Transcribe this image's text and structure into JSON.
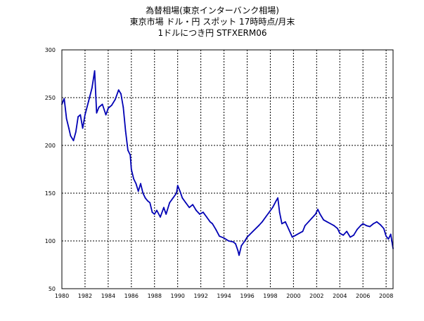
{
  "chart_data": {
    "type": "line",
    "title": "為替相場(東京インターバンク相場)",
    "subtitle": "東京市場  ドル・円  スポット  17時時点/月末",
    "series_label": "1ドルにつき円 STFXERM06",
    "xlabel": "",
    "ylabel": "",
    "xlim": [
      1980,
      2008.6
    ],
    "ylim": [
      50,
      300
    ],
    "grid": true,
    "x_ticks": [
      "1980",
      "1982",
      "1984",
      "1986",
      "1988",
      "1990",
      "1992",
      "1994",
      "1996",
      "1998",
      "2000",
      "2002",
      "2004",
      "2006",
      "2008"
    ],
    "y_ticks": [
      "300",
      "250",
      "200",
      "150",
      "100",
      "50"
    ],
    "line_color": "#0000b4",
    "series": [
      {
        "x": [
          1980.0,
          1980.2,
          1980.4,
          1980.6,
          1980.75,
          1981.0,
          1981.2,
          1981.4,
          1981.6,
          1981.8,
          1982.0,
          1982.3,
          1982.6,
          1982.83,
          1983.0,
          1983.2,
          1983.5,
          1983.8,
          1984.0,
          1984.3,
          1984.6,
          1984.9,
          1985.1,
          1985.3,
          1985.5,
          1985.7,
          1985.9,
          1986.0,
          1986.2,
          1986.4,
          1986.6,
          1986.8,
          1987.0,
          1987.2,
          1987.4,
          1987.6,
          1987.8,
          1988.0,
          1988.2,
          1988.5,
          1988.8,
          1989.0,
          1989.3,
          1989.6,
          1989.9,
          1990.0,
          1990.2,
          1990.4,
          1990.7,
          1991.0,
          1991.3,
          1991.6,
          1991.9,
          1992.2,
          1992.5,
          1992.8,
          1993.0,
          1993.3,
          1993.6,
          1994.0,
          1994.4,
          1994.8,
          1995.0,
          1995.2,
          1995.3,
          1995.5,
          1995.8,
          1996.0,
          1996.5,
          1997.0,
          1997.3,
          1997.6,
          1997.9,
          1998.2,
          1998.5,
          1998.65,
          1998.8,
          1999.0,
          1999.3,
          1999.6,
          1999.9,
          2000.2,
          2000.5,
          2000.8,
          2001.0,
          2001.3,
          2001.6,
          2001.9,
          2002.1,
          2002.3,
          2002.6,
          2002.9,
          2003.2,
          2003.5,
          2003.8,
          2004.0,
          2004.3,
          2004.6,
          2004.9,
          2005.2,
          2005.5,
          2005.8,
          2006.0,
          2006.3,
          2006.6,
          2006.9,
          2007.2,
          2007.5,
          2007.8,
          2008.0,
          2008.2,
          2008.4,
          2008.6
        ],
        "values": [
          243,
          249,
          228,
          218,
          210,
          205,
          214,
          230,
          232,
          218,
          232,
          246,
          260,
          278,
          234,
          240,
          243,
          232,
          239,
          242,
          248,
          258,
          254,
          240,
          215,
          195,
          190,
          175,
          165,
          160,
          152,
          160,
          150,
          145,
          142,
          140,
          130,
          128,
          132,
          125,
          135,
          128,
          140,
          145,
          150,
          158,
          152,
          145,
          140,
          135,
          138,
          132,
          128,
          130,
          125,
          120,
          118,
          112,
          105,
          103,
          100,
          99,
          97,
          90,
          85,
          95,
          100,
          104,
          110,
          116,
          120,
          125,
          130,
          135,
          142,
          145,
          130,
          118,
          120,
          112,
          104,
          106,
          108,
          110,
          116,
          120,
          124,
          128,
          133,
          128,
          122,
          120,
          118,
          116,
          113,
          108,
          106,
          110,
          104,
          106,
          112,
          116,
          118,
          116,
          115,
          118,
          120,
          117,
          113,
          105,
          102,
          107,
          92
        ]
      }
    ]
  }
}
